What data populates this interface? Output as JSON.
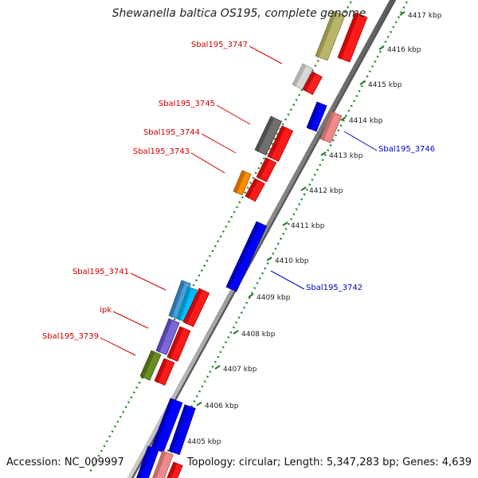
{
  "title": "Shewanella baltica OS195, complete genome",
  "footer": {
    "accession": "Accession: NC_009997",
    "topology": "Topology: circular; Length: 5,347,283 bp; Genes: 4,639"
  },
  "ticks": [
    {
      "label": "4405 kbp"
    },
    {
      "label": "4406 kbp"
    },
    {
      "label": "4407 kbp"
    },
    {
      "label": "4408 kbp"
    },
    {
      "label": "4409 kbp"
    },
    {
      "label": "4410 kbp"
    },
    {
      "label": "4411 kbp"
    },
    {
      "label": "4412 kbp"
    },
    {
      "label": "4413 kbp"
    },
    {
      "label": "4414 kbp"
    },
    {
      "label": "4415 kbp"
    },
    {
      "label": "4416 kbp"
    },
    {
      "label": "4417 kbp"
    }
  ],
  "gene_labels": [
    {
      "text": "Sbal195_3747",
      "color": "#cc0000"
    },
    {
      "text": "Sbal195_3745",
      "color": "#cc0000"
    },
    {
      "text": "Sbal195_3744",
      "color": "#cc0000"
    },
    {
      "text": "Sbal195_3743",
      "color": "#cc0000"
    },
    {
      "text": "Sbal195_3741",
      "color": "#cc0000"
    },
    {
      "text": "ipk",
      "color": "#cc0000"
    },
    {
      "text": "Sbal195_3739",
      "color": "#cc0000"
    },
    {
      "text": "Sbal195_3746",
      "color": "#0000cc"
    },
    {
      "text": "Sbal195_3742",
      "color": "#0000cc"
    }
  ],
  "colors": {
    "forward_gene": "#ff0000",
    "reverse_gene": "#0000ff",
    "backbone": "#999999",
    "tick_dots": "#228b22"
  }
}
